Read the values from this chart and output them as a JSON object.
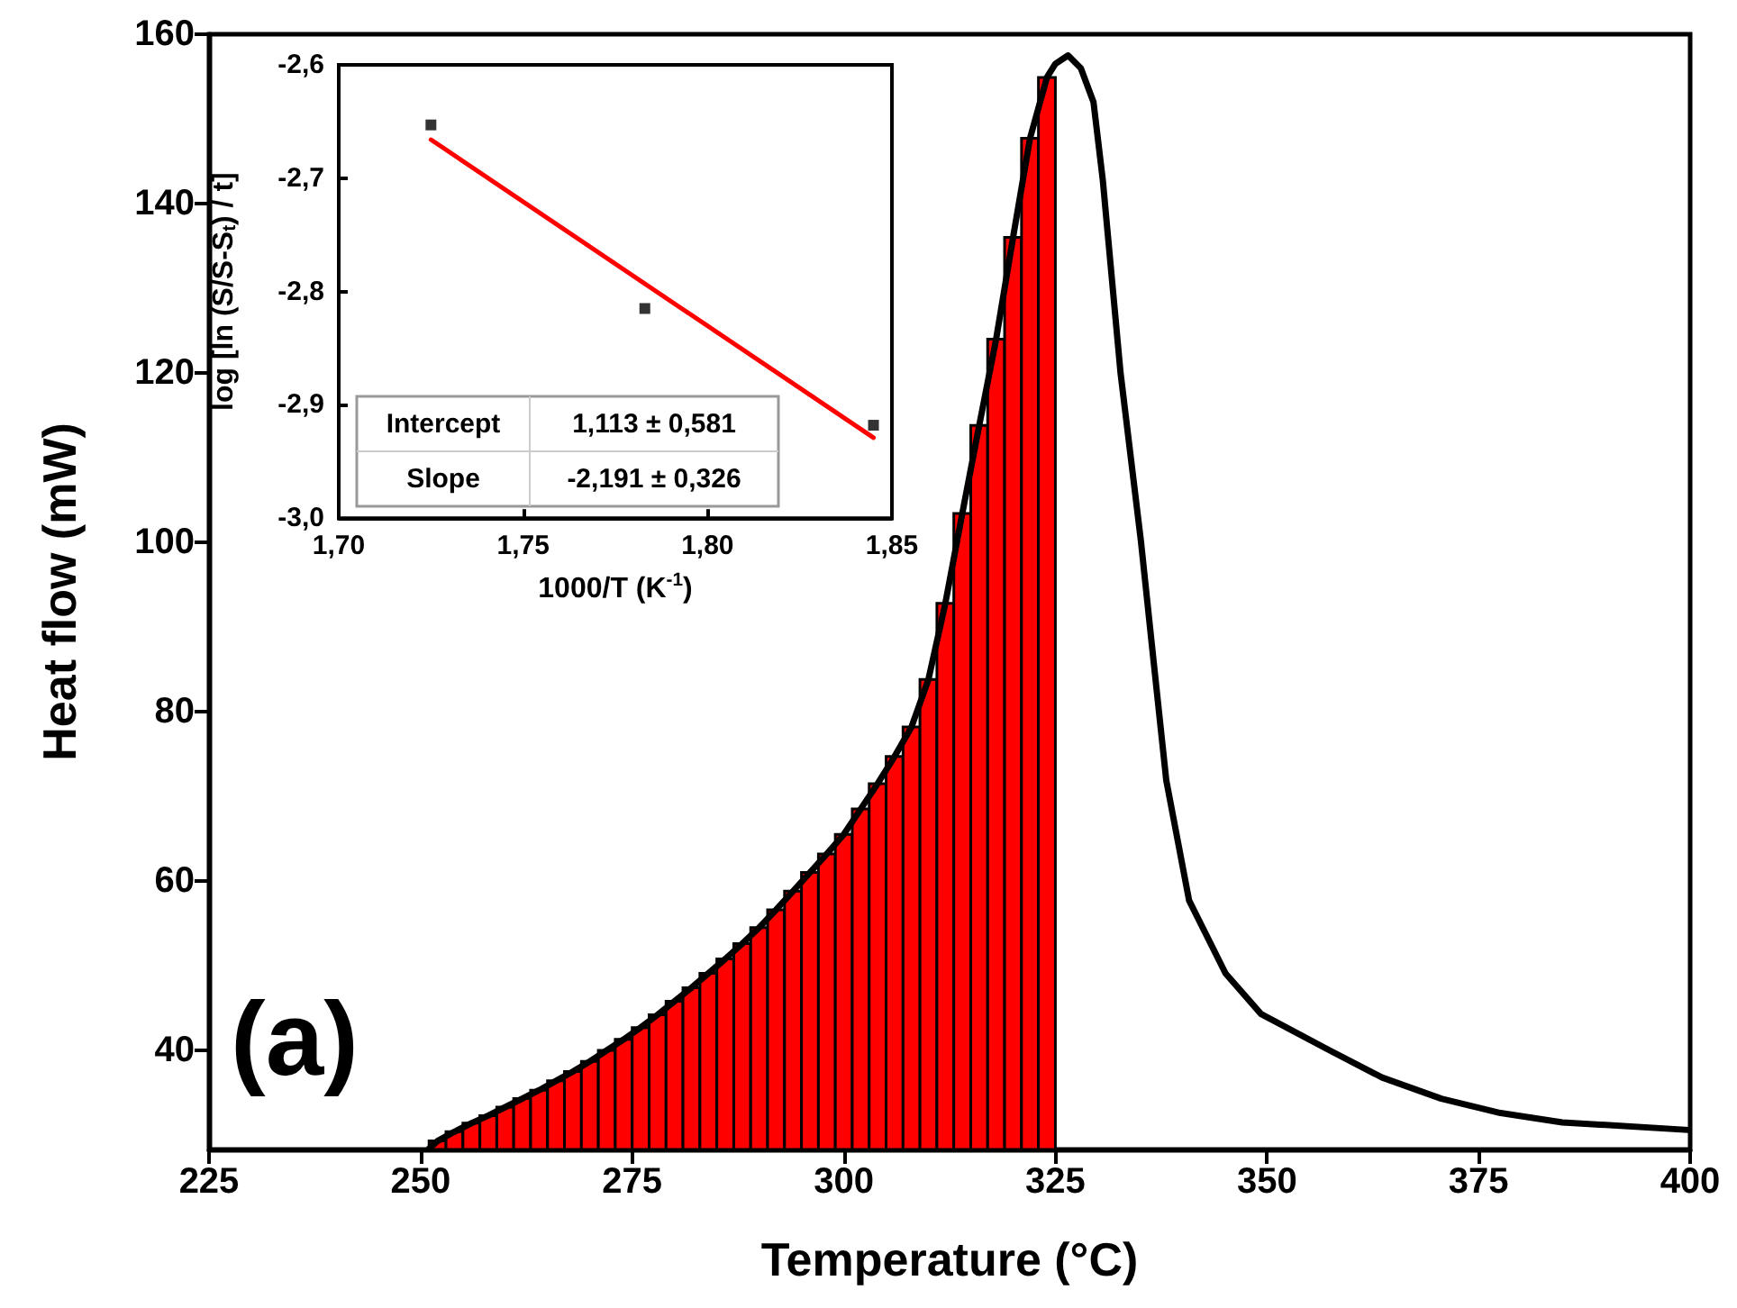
{
  "chart_data": [
    {
      "type": "line",
      "xlabel": "Temperature (°C)",
      "ylabel": "Heat flow (mW)",
      "xlim": [
        225,
        400
      ],
      "xticks": [
        225,
        250,
        275,
        300,
        325,
        350,
        375,
        400
      ],
      "ylim": [
        28.3,
        160
      ],
      "yticks": [
        40,
        60,
        80,
        100,
        120,
        140,
        160
      ],
      "annotations": [
        "(a)"
      ],
      "series": [
        {
          "type": "histogram",
          "color": "#ff0000",
          "bins": [
            251,
            253,
            255,
            257,
            259,
            261,
            263,
            265,
            267,
            269,
            271,
            273,
            275,
            277,
            279,
            281,
            283,
            285,
            287,
            289,
            291,
            293,
            295,
            297,
            299,
            301,
            303,
            305,
            307,
            309,
            311,
            313,
            315,
            317,
            319,
            321,
            323,
            325
          ],
          "values": [
            29.3,
            30.4,
            31.4,
            32.3,
            33.3,
            34.3,
            35.3,
            36.4,
            37.5,
            38.7,
            40.0,
            41.3,
            42.7,
            44.2,
            45.8,
            47.4,
            49.1,
            50.8,
            52.6,
            54.5,
            56.6,
            58.8,
            61.0,
            63.2,
            65.5,
            68.5,
            71.5,
            74.7,
            78.2,
            83.8,
            92.8,
            103.4,
            113.8,
            124.0,
            136.0,
            147.7,
            154.9
          ]
        },
        {
          "color": "#000000",
          "x": [
            251,
            252,
            254,
            256,
            258,
            260,
            262,
            264,
            266,
            268,
            270,
            272,
            274,
            276,
            278,
            280,
            282,
            284,
            286,
            288,
            290,
            292,
            294,
            296,
            298,
            300,
            302,
            304,
            306,
            308,
            310,
            312,
            314,
            316,
            318,
            320,
            322,
            324,
            325,
            326.5,
            328,
            329.5,
            330.6,
            332.7,
            335.1,
            336.6,
            338.1,
            340.8,
            345.1,
            349.3,
            357.4,
            363.6,
            370.6,
            377.6,
            384.9,
            399.8
          ],
          "values": [
            28.4,
            29.3,
            30.4,
            31.4,
            32.3,
            33.3,
            34.3,
            35.3,
            36.4,
            37.5,
            38.7,
            40.0,
            41.3,
            42.7,
            44.2,
            45.8,
            47.4,
            49.1,
            50.8,
            52.6,
            54.5,
            56.6,
            58.8,
            61.0,
            63.2,
            65.5,
            68.5,
            71.5,
            74.7,
            78.2,
            83.8,
            92.8,
            103.4,
            113.8,
            124.0,
            136.0,
            147.7,
            154.9,
            156.5,
            157.5,
            156,
            152,
            142.8,
            120,
            100.2,
            86,
            71.9,
            57.7,
            49.1,
            44.3,
            40,
            36.8,
            34.3,
            32.6,
            31.5,
            30.6
          ]
        }
      ]
    },
    {
      "type": "scatter",
      "xlabel": "1000/T (K$^{-1}$)",
      "ylabel": "log [ln (S/S-S$_{t}$) / t]",
      "xlim": [
        1.7,
        1.85
      ],
      "xticks": [
        {
          "value": 1.7,
          "label": "1,70"
        },
        {
          "value": 1.75,
          "label": "1,75"
        },
        {
          "value": 1.8,
          "label": "1,80"
        },
        {
          "value": 1.85,
          "label": "1,85"
        }
      ],
      "ylim": [
        -3.0,
        -2.6
      ],
      "yticks": [
        {
          "value": -3.0,
          "label": "-3,0"
        },
        {
          "value": -2.9,
          "label": "-2,9"
        },
        {
          "value": -2.8,
          "label": "-2,8"
        },
        {
          "value": -2.7,
          "label": "-2,7"
        },
        {
          "value": -2.6,
          "label": "-2,6"
        }
      ],
      "annotations": [
        "Intercept",
        "1,113 ± 0,581",
        "Slope",
        "-2,191 ± 0,326"
      ],
      "series": [
        {
          "color": "#000000",
          "marker": "square",
          "x": [
            1.725,
            1.783,
            1.845
          ],
          "values": [
            -2.653,
            -2.815,
            -2.918
          ]
        },
        {
          "type": "line",
          "color": "#ff0000",
          "x": [
            1.725,
            1.845
          ],
          "values": [
            -2.666,
            -2.929
          ]
        }
      ]
    }
  ]
}
